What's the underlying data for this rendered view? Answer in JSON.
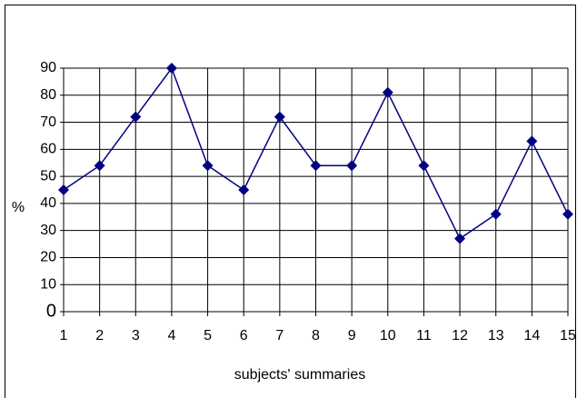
{
  "chart_data": {
    "type": "line",
    "x": [
      1,
      2,
      3,
      4,
      5,
      6,
      7,
      8,
      9,
      10,
      11,
      12,
      13,
      14,
      15
    ],
    "series": [
      {
        "color": "#000080",
        "values": [
          45,
          54,
          72,
          90,
          54,
          45,
          72,
          54,
          54,
          81,
          54,
          27,
          36,
          63,
          36
        ]
      }
    ],
    "xlim": [
      1,
      15
    ],
    "xticks": [
      1,
      2,
      3,
      4,
      5,
      6,
      7,
      8,
      9,
      10,
      11,
      12,
      13,
      14,
      15
    ],
    "ylim": [
      0,
      90
    ],
    "yticks": [
      0,
      10,
      20,
      30,
      40,
      50,
      60,
      70,
      80,
      90
    ],
    "y_label": "%",
    "x_label": "subjects' summaries",
    "grid": true
  }
}
